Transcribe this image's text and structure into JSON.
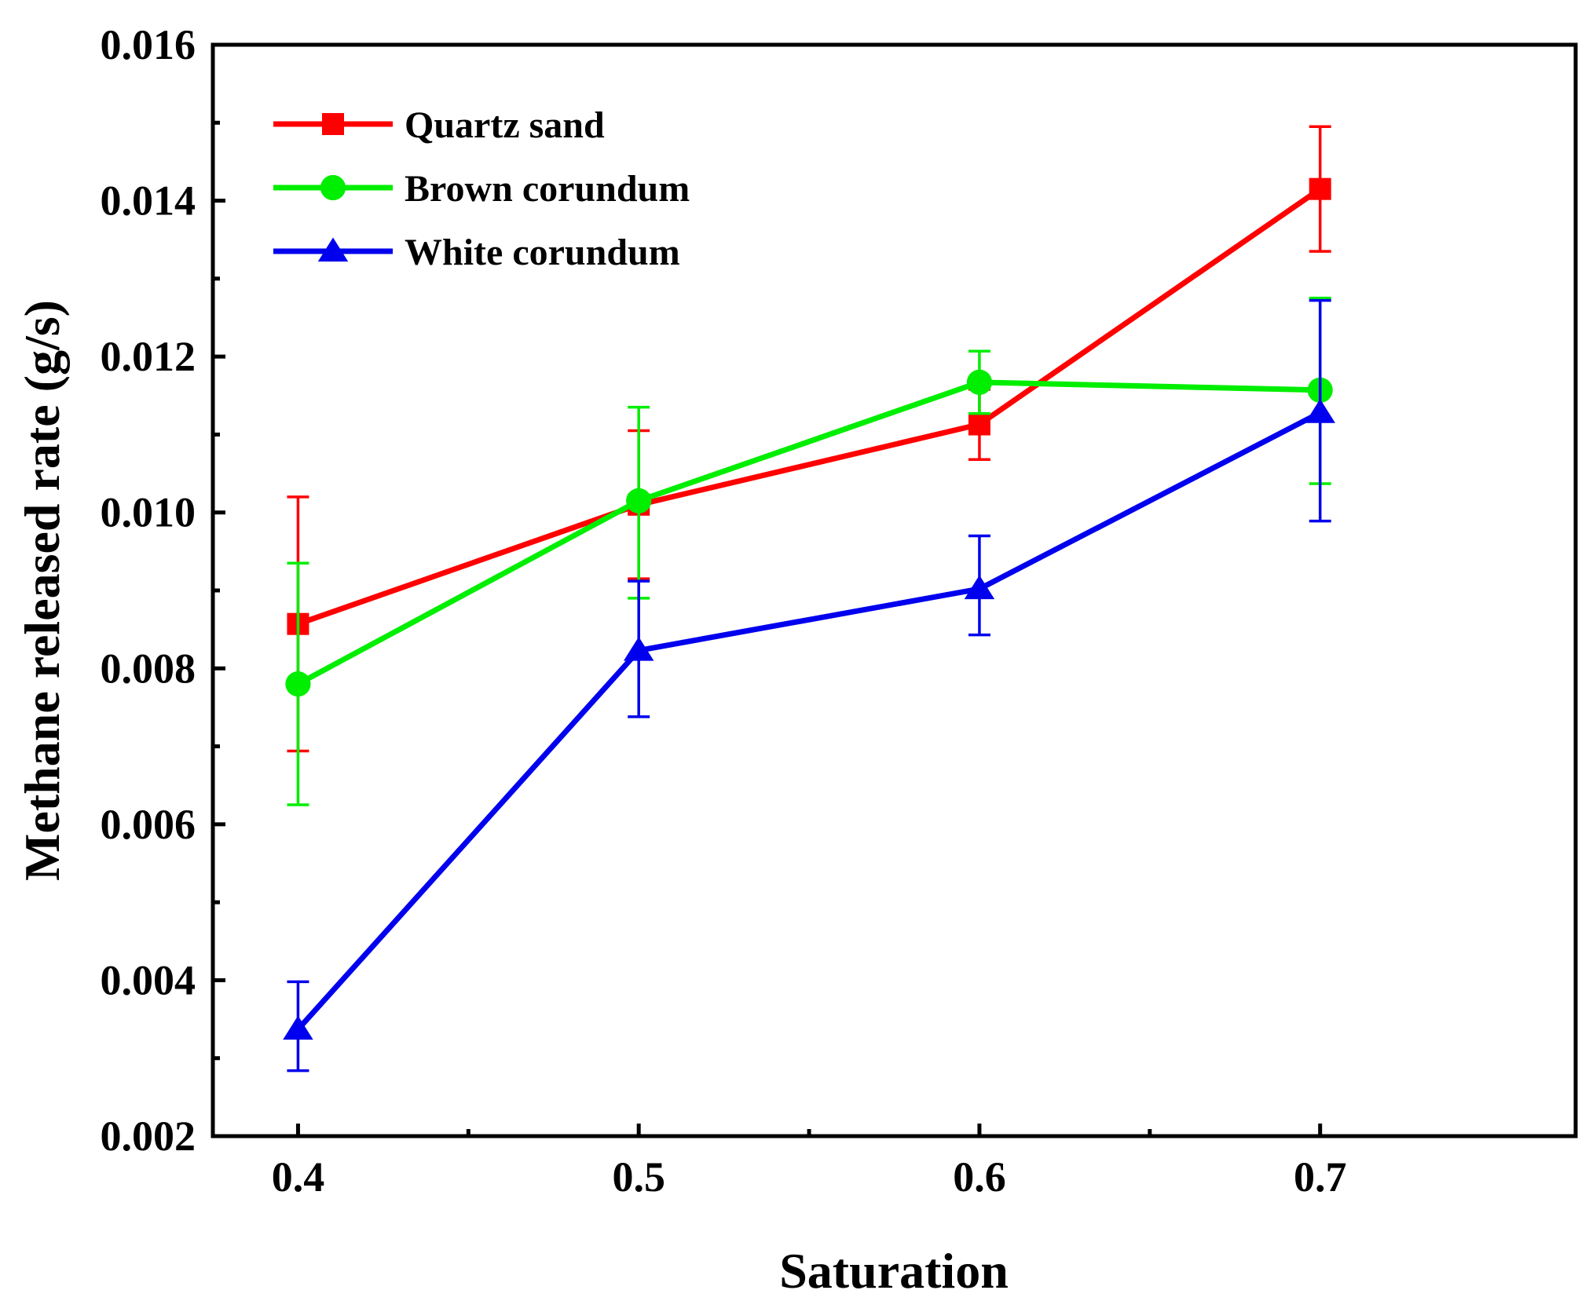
{
  "chart_data": {
    "type": "line",
    "xlabel": "Saturation",
    "ylabel": "Methane released rate (g/s)",
    "x": [
      0.4,
      0.5,
      0.6,
      0.7
    ],
    "x_tick_labels": [
      "0.4",
      "0.5",
      "0.6",
      "0.7"
    ],
    "xlim": [
      0.375,
      0.775
    ],
    "ylim": [
      0.002,
      0.016
    ],
    "y_ticks": [
      0.002,
      0.004,
      0.006,
      0.008,
      0.01,
      0.012,
      0.014,
      0.016
    ],
    "y_tick_labels": [
      "0.002",
      "0.004",
      "0.006",
      "0.008",
      "0.010",
      "0.012",
      "0.014",
      "0.016"
    ],
    "grid": false,
    "legend_position": "top-left",
    "series": [
      {
        "name": "Quartz sand",
        "color": "#ff0000",
        "marker": "square",
        "values": [
          0.00857,
          0.0101,
          0.01113,
          0.01415
        ],
        "error_upper": [
          0.0102,
          0.01105,
          0.01158,
          0.01495
        ],
        "error_lower": [
          0.00694,
          0.00915,
          0.01068,
          0.01335
        ]
      },
      {
        "name": "Brown corundum",
        "color": "#00ee00",
        "marker": "circle",
        "values": [
          0.0078,
          0.01015,
          0.01167,
          0.01157
        ],
        "error_upper": [
          0.00935,
          0.01135,
          0.01207,
          0.01275
        ],
        "error_lower": [
          0.00625,
          0.0089,
          0.01127,
          0.01037
        ]
      },
      {
        "name": "White corundum",
        "color": "#0000ee",
        "marker": "triangle",
        "values": [
          0.00337,
          0.00823,
          0.00902,
          0.01128
        ],
        "error_upper": [
          0.00398,
          0.00912,
          0.0097,
          0.01272
        ],
        "error_lower": [
          0.00284,
          0.00738,
          0.00843,
          0.00989
        ]
      }
    ]
  }
}
